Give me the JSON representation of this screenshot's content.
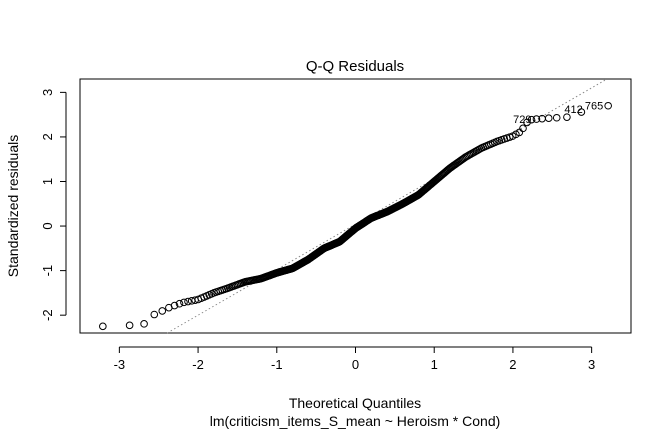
{
  "chart_data": {
    "type": "scatter",
    "title": "Q-Q Residuals",
    "xlabel": "Theoretical Quantiles",
    "ylabel": "Standardized residuals",
    "subtitle": "lm(criticism_items_S_mean ~ Heroism * Cond)",
    "xlim": [
      -3.5,
      3.5
    ],
    "ylim": [
      -2.4,
      3.3
    ],
    "xticks": [
      -3,
      -2,
      -1,
      0,
      1,
      2,
      3
    ],
    "yticks": [
      -2,
      -1,
      0,
      1,
      2,
      3
    ],
    "grid": false,
    "reference_line": {
      "style": "dotted",
      "color": "#888888",
      "intercept": 0.04,
      "slope": 1.02
    },
    "profile": {
      "x": [
        -3.21,
        -2.9,
        -2.75,
        -2.65,
        -2.58,
        -2.5,
        -2.4,
        -2.2,
        -2.0,
        -1.8,
        -1.6,
        -1.4,
        -1.2,
        -1.0,
        -0.8,
        -0.6,
        -0.4,
        -0.2,
        0.0,
        0.2,
        0.4,
        0.6,
        0.8,
        1.0,
        1.2,
        1.4,
        1.6,
        1.8,
        2.0,
        2.1,
        2.2,
        2.3,
        2.45,
        2.55,
        2.65,
        2.75,
        2.95,
        3.21
      ],
      "y": [
        -2.25,
        -2.23,
        -2.22,
        -2.18,
        -2.0,
        -1.95,
        -1.85,
        -1.72,
        -1.65,
        -1.5,
        -1.38,
        -1.25,
        -1.18,
        -1.05,
        -0.95,
        -0.75,
        -0.5,
        -0.35,
        -0.05,
        0.18,
        0.32,
        0.5,
        0.7,
        1.0,
        1.3,
        1.55,
        1.75,
        1.9,
        2.02,
        2.12,
        2.38,
        2.4,
        2.42,
        2.43,
        2.44,
        2.45,
        2.63,
        2.7
      ]
    },
    "n_points": 370,
    "labeled_points": [
      {
        "label": "765",
        "x": 3.21,
        "y": 2.7
      },
      {
        "label": "412",
        "x": 2.95,
        "y": 2.63
      },
      {
        "label": "729",
        "x": 2.3,
        "y": 2.4
      }
    ]
  }
}
